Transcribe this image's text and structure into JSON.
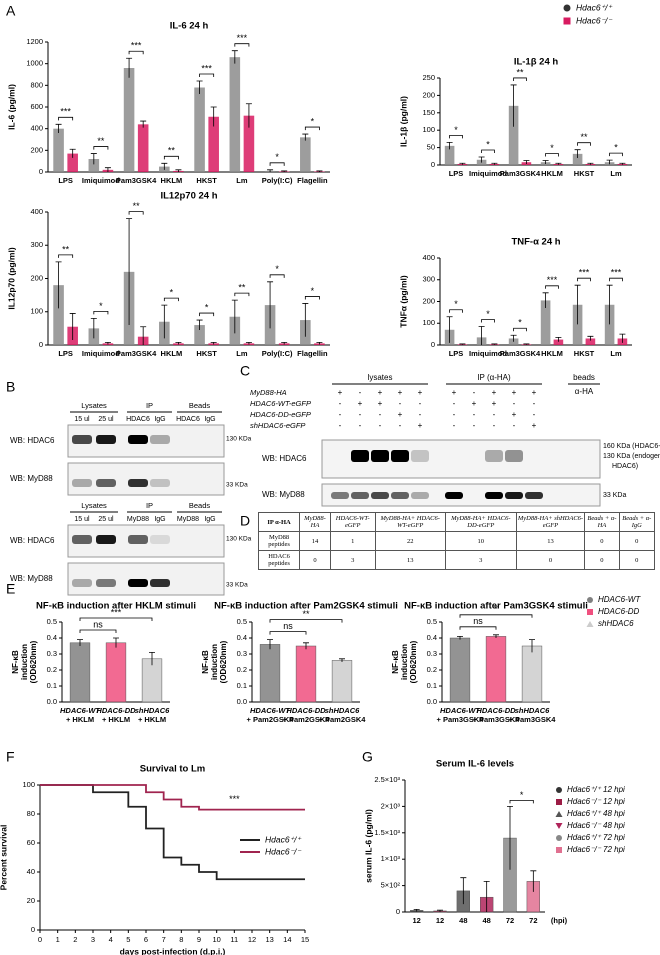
{
  "chart_data": [
    {
      "type": "bar",
      "panel": "A",
      "title": "IL-6 24 h",
      "ylabel": "IL-6 (pg/ml)",
      "categories": [
        "LPS",
        "Imiquimod",
        "Pam3GSK4",
        "HKLM",
        "HKST",
        "Lm",
        "Poly(I:C)",
        "Flagellin"
      ],
      "series": [
        {
          "name": "Hdac6⁺/⁺",
          "color": "#8c8c8c",
          "values": [
            400,
            120,
            960,
            50,
            780,
            1060,
            10,
            320
          ],
          "errors": [
            40,
            50,
            90,
            30,
            60,
            60,
            10,
            30
          ]
        },
        {
          "name": "Hdac6⁻/⁻",
          "color": "#d81b60",
          "values": [
            170,
            20,
            440,
            10,
            510,
            520,
            5,
            5
          ],
          "errors": [
            40,
            20,
            30,
            10,
            90,
            110,
            5,
            5
          ]
        }
      ],
      "ylim": [
        0,
        1200
      ],
      "yticks": [
        0,
        200,
        400,
        600,
        800,
        1000,
        1200
      ],
      "significance": [
        "***",
        "**",
        "***",
        "**",
        "***",
        "***",
        "*",
        "*"
      ]
    },
    {
      "type": "bar",
      "title": "IL-1β 24 h",
      "ylabel": "IL-1β (pg/ml)",
      "categories": [
        "LPS",
        "Imiquimod",
        "Pam3GSK4",
        "HKLM",
        "HKST",
        "Lm"
      ],
      "series": [
        {
          "values": [
            55,
            15,
            170,
            8,
            32,
            8
          ],
          "errors": [
            10,
            8,
            60,
            5,
            12,
            6
          ]
        },
        {
          "values": [
            3,
            3,
            8,
            3,
            3,
            3
          ],
          "errors": [
            2,
            2,
            5,
            2,
            2,
            2
          ]
        }
      ],
      "ylim": [
        0,
        250
      ],
      "yticks": [
        0,
        50,
        100,
        150,
        200,
        250
      ],
      "significance": [
        "*",
        "*",
        "**",
        "*",
        "**",
        "*"
      ]
    },
    {
      "type": "bar",
      "title": "IL12p70  24 h",
      "ylabel": "IL12p70 (pg/ml)",
      "categories": [
        "LPS",
        "Imiquimod",
        "Pam3GSK4",
        "HKLM",
        "HKST",
        "Lm",
        "Poly(I:C)",
        "Flagellin"
      ],
      "series": [
        {
          "values": [
            180,
            50,
            220,
            70,
            60,
            85,
            120,
            75
          ],
          "errors": [
            70,
            30,
            160,
            50,
            15,
            50,
            70,
            50
          ]
        },
        {
          "values": [
            55,
            5,
            25,
            5,
            5,
            5,
            5,
            5
          ],
          "errors": [
            40,
            3,
            30,
            3,
            3,
            3,
            3,
            3
          ]
        }
      ],
      "ylim": [
        0,
        400
      ],
      "yticks": [
        0,
        100,
        200,
        300,
        400
      ],
      "significance": [
        "**",
        "*",
        "**",
        "*",
        "*",
        "**",
        "*",
        "*"
      ]
    },
    {
      "type": "bar",
      "title": "TNF-α  24 h",
      "ylabel": "TNFα (pg/ml)",
      "categories": [
        "LPS",
        "Imiquimod",
        "Pam3GSK4",
        "HKLM",
        "HKST",
        "Lm"
      ],
      "series": [
        {
          "values": [
            70,
            35,
            30,
            205,
            185,
            185
          ],
          "errors": [
            60,
            50,
            15,
            35,
            90,
            90
          ]
        },
        {
          "values": [
            3,
            3,
            3,
            25,
            30,
            30
          ],
          "errors": [
            2,
            2,
            2,
            10,
            10,
            20
          ]
        }
      ],
      "ylim": [
        0,
        400
      ],
      "yticks": [
        0,
        100,
        200,
        300,
        400
      ],
      "significance": [
        "*",
        "*",
        "*",
        "***",
        "***",
        "***"
      ]
    },
    {
      "type": "bar",
      "panel": "E",
      "title": "NF-κB  induction after HKLM stimuli",
      "ylabel": [
        "NF-κB",
        "induction",
        "(OD620nm)"
      ],
      "categories": [
        [
          "HDAC6-WT",
          "+ HKLM"
        ],
        [
          "HDAC6-DD",
          "+ HKLM"
        ],
        [
          "shHDAC6",
          "+ HKLM"
        ]
      ],
      "values": [
        0.37,
        0.37,
        0.27
      ],
      "errors": [
        0.02,
        0.03,
        0.04
      ],
      "colors": [
        "#808080",
        "#f0507f",
        "#cccccc"
      ],
      "ylim": [
        0,
        0.5
      ],
      "yticks": [
        {
          "value": 0,
          "label": "0.0"
        },
        0.1,
        0.2,
        0.3,
        0.4,
        0.5
      ],
      "comparisons": [
        "ns",
        "***"
      ]
    },
    {
      "type": "bar",
      "title": "NF-κB  induction after Pam2GSK4 stimuli",
      "ylabel": [
        "NF-κB",
        "induction",
        "(OD620nm)"
      ],
      "categories": [
        [
          "HDAC6-WT",
          "+ Pam2GSK4"
        ],
        [
          "HDAC6-DD",
          "+ Pam2GSK4"
        ],
        [
          "shHDAC6",
          "+ Pam2GSK4"
        ]
      ],
      "values": [
        0.36,
        0.35,
        0.26
      ],
      "errors": [
        0.03,
        0.02,
        0.01
      ],
      "colors": [
        "#808080",
        "#f0507f",
        "#cccccc"
      ],
      "ylim": [
        0,
        0.5
      ],
      "yticks": [
        {
          "value": 0,
          "label": "0.0"
        },
        0.1,
        0.2,
        0.3,
        0.4,
        0.5
      ],
      "comparisons": [
        "ns",
        "**"
      ]
    },
    {
      "type": "bar",
      "title": "NF-κB  induction after Pam3GSK4 stimuli",
      "ylabel": [
        "NF-κB",
        "induction",
        "(OD620nm)"
      ],
      "categories": [
        [
          "HDAC6-WT",
          "+ Pam3GSK4"
        ],
        [
          "HDAC6-DD",
          "+ Pam3GSK4"
        ],
        [
          "shHDAC6",
          "+ Pam3GSK4"
        ]
      ],
      "values": [
        0.4,
        0.41,
        0.35
      ],
      "errors": [
        0.01,
        0.01,
        0.04
      ],
      "colors": [
        "#808080",
        "#f0507f",
        "#cccccc"
      ],
      "ylim": [
        0,
        0.5
      ],
      "yticks": [
        {
          "value": 0,
          "label": "0.0"
        },
        0.1,
        0.2,
        0.3,
        0.4,
        0.5
      ],
      "comparisons": [
        "ns",
        "*"
      ],
      "legend": [
        "HDAC6-WT",
        "HDAC6-DD",
        "shHDAC6"
      ]
    },
    {
      "type": "line",
      "panel": "F",
      "title": "Survival to Lm",
      "ylabel": "Percent survival",
      "xlabel": "days post-infection (d.p.i.)",
      "x": [
        0,
        1,
        2,
        3,
        4,
        5,
        6,
        7,
        8,
        9,
        10,
        11,
        12,
        13,
        14,
        15
      ],
      "series": [
        {
          "name": "Hdac6⁺/⁺",
          "color": "#222222",
          "values": [
            100,
            100,
            100,
            95,
            95,
            85,
            70,
            50,
            45,
            40,
            35,
            35,
            35,
            35,
            35,
            35
          ]
        },
        {
          "name": "Hdac6⁻/⁻",
          "color": "#a0244f",
          "values": [
            100,
            100,
            100,
            100,
            100,
            100,
            95,
            90,
            85,
            83,
            83,
            83,
            83,
            83,
            83,
            83
          ]
        }
      ],
      "xlim": [
        0,
        15
      ],
      "xticks": [
        0,
        1,
        2,
        3,
        4,
        5,
        6,
        7,
        8,
        9,
        10,
        11,
        12,
        13,
        14,
        15
      ],
      "ylim": [
        0,
        100
      ],
      "yticks": [
        0,
        20,
        40,
        60,
        80,
        100
      ],
      "annotation": "***"
    },
    {
      "type": "bar",
      "panel": "G",
      "title": "Serum IL-6 levels",
      "ylabel": "serum IL-6 (pg/ml)",
      "xlabel": "(hpi)",
      "categories": [
        "12",
        "12",
        "48",
        "48",
        "72",
        "72"
      ],
      "values": [
        30,
        20,
        400,
        280,
        1400,
        580
      ],
      "errors": [
        20,
        15,
        250,
        300,
        600,
        200
      ],
      "colors": [
        "#333333",
        "#9c1c45",
        "#555555",
        "#b0245a",
        "#888888",
        "#e07090"
      ],
      "ylim": [
        0,
        2500
      ],
      "yticks": [
        0,
        {
          "value": 500,
          "label": "5×10²"
        },
        {
          "value": 1000,
          "label": "1×10³"
        },
        {
          "value": 1500,
          "label": "1.5×10³"
        },
        {
          "value": 2000,
          "label": "2×10³"
        },
        {
          "value": 2500,
          "label": "2.5×10³"
        }
      ],
      "significance": "*",
      "legend": [
        "Hdac6⁺/⁺ 12 hpi",
        "Hdac6⁻/⁻ 12 hpi",
        "Hdac6⁺/⁺ 48 hpi",
        "Hdac6⁻/⁻ 48 hpi",
        "Hdac6⁺/⁺ 72 hpi",
        "Hdac6⁻/⁻ 72 hpi"
      ]
    }
  ],
  "blots_b": {
    "panel": "B",
    "blots": [
      {
        "groups": [
          "Lysates",
          "IP",
          "Beads"
        ],
        "lanes": [
          "15 ul",
          "25 ul",
          "HDAC6",
          "IgG",
          "HDAC6",
          "IgG"
        ],
        "rows": [
          "WB: HDAC6",
          "WB: MyD88"
        ],
        "markers": [
          "130 KDa",
          "33 KDa"
        ]
      },
      {
        "groups": [
          "Lysates",
          "IP",
          "Beads"
        ],
        "lanes": [
          "15 ul",
          "25 ul",
          "MyD88",
          "IgG",
          "MyD88",
          "IgG"
        ],
        "rows": [
          "WB: HDAC6",
          "WB: MyD88"
        ],
        "markers": [
          "130 KDa",
          "33 KDa"
        ]
      }
    ]
  },
  "blots_c": {
    "panel": "C",
    "groups": [
      "lysates",
      "IP (α-HA)",
      "beads"
    ],
    "beads_lane": "α-HA",
    "rows": [
      {
        "label": "MyD88-HA",
        "signs": [
          "+",
          "-",
          "+",
          "+",
          "+",
          "+",
          "-",
          "+",
          "+",
          "+"
        ]
      },
      {
        "label": "HDAC6-WT-eGFP",
        "signs": [
          "-",
          "+",
          "+",
          "-",
          "-",
          "-",
          "+",
          "+",
          "-",
          "-"
        ]
      },
      {
        "label": "HDAC6-DD-eGFP",
        "signs": [
          "-",
          "-",
          "-",
          "+",
          "-",
          "-",
          "-",
          "-",
          "+",
          "-"
        ]
      },
      {
        "label": "shHDAC6-eGFP",
        "signs": [
          "-",
          "-",
          "-",
          "-",
          "+",
          "-",
          "-",
          "-",
          "-",
          "+"
        ]
      }
    ],
    "blots": [
      "WB: HDAC6",
      "WB: MyD88"
    ],
    "markers": [
      "160 KDa (HDAC6-eGFP)",
      [
        "130 KDa (endogenous",
        "HDAC6)"
      ],
      "33 KDa"
    ]
  },
  "table_d": {
    "panel": "D",
    "header": [
      "IP α-HA",
      "MyD88-HA",
      "HDAC6-WT-eGFP",
      "MyD88-HA+ HDAC6-WT-eGFP",
      "MyD88-HA+ HDAC6-DD-eGFP",
      "MyD88-HA+ shHDAC6-eGFP",
      "Beads + α-HA",
      "Beads + α-IgG"
    ],
    "rows": [
      {
        "label": "MyD88 peptides",
        "values": [
          14,
          1,
          22,
          10,
          13,
          0,
          0
        ]
      },
      {
        "label": "HDAC6 peptides",
        "values": [
          0,
          3,
          13,
          3,
          0,
          0,
          0
        ]
      }
    ]
  }
}
